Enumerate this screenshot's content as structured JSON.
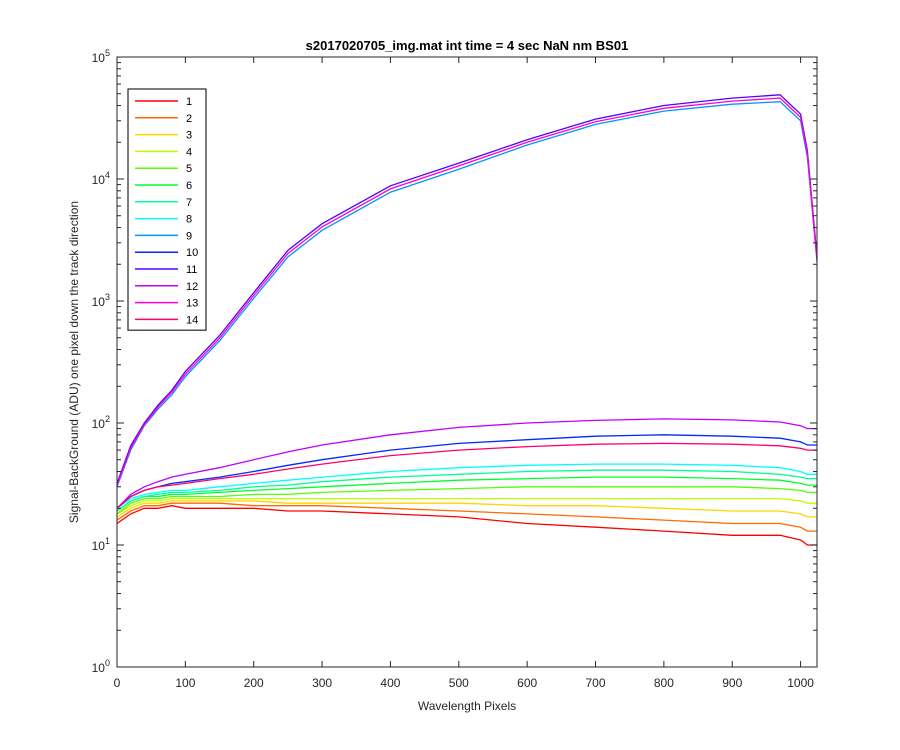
{
  "chart_data": {
    "type": "line",
    "title": "s2017020705_img.mat int time = 4 sec  NaN nm BS01",
    "xlabel": "Wavelength Pixels",
    "ylabel": "Signal-BackGround (ADU) one pixel down the track direction",
    "xlim": [
      0,
      1024
    ],
    "ylim": [
      1,
      100000
    ],
    "yscale": "log",
    "grid": false,
    "legend_position": "top-left",
    "x_ticks": [
      0,
      100,
      200,
      300,
      400,
      500,
      600,
      700,
      800,
      900,
      1000
    ],
    "x_tick_labels": [
      "0",
      "100",
      "200",
      "300",
      "400",
      "500",
      "600",
      "700",
      "800",
      "900",
      "1000"
    ],
    "y_ticks": [
      1,
      10,
      100,
      1000,
      10000,
      100000
    ],
    "y_tick_labels": [
      {
        "base": "10",
        "exp": "0"
      },
      {
        "base": "10",
        "exp": "1"
      },
      {
        "base": "10",
        "exp": "2"
      },
      {
        "base": "10",
        "exp": "3"
      },
      {
        "base": "10",
        "exp": "4"
      },
      {
        "base": "10",
        "exp": "5"
      }
    ],
    "x": [
      0,
      20,
      40,
      60,
      80,
      100,
      150,
      200,
      250,
      300,
      400,
      500,
      600,
      700,
      800,
      900,
      970,
      1000,
      1010,
      1024
    ],
    "series": [
      {
        "name": "1",
        "color": "#ff0000",
        "values": [
          15,
          18,
          20,
          20,
          21,
          20,
          20,
          20,
          19,
          19,
          18,
          17,
          15,
          14,
          13,
          12,
          12,
          11,
          10,
          10
        ]
      },
      {
        "name": "2",
        "color": "#ff6a00",
        "values": [
          16,
          19,
          21,
          21,
          22,
          22,
          22,
          21,
          21,
          21,
          20,
          19,
          18,
          17,
          16,
          15,
          15,
          14,
          13,
          13
        ]
      },
      {
        "name": "3",
        "color": "#ffd500",
        "values": [
          17,
          20,
          22,
          22,
          23,
          23,
          23,
          23,
          22,
          22,
          22,
          22,
          21,
          21,
          20,
          19,
          19,
          18,
          17,
          17
        ]
      },
      {
        "name": "4",
        "color": "#bfff00",
        "values": [
          18,
          21,
          23,
          23,
          24,
          24,
          24,
          24,
          24,
          24,
          24,
          24,
          24,
          24,
          24,
          24,
          24,
          23,
          22,
          22
        ]
      },
      {
        "name": "5",
        "color": "#55ff00",
        "values": [
          18,
          22,
          24,
          24,
          25,
          25,
          25,
          26,
          26,
          27,
          28,
          29,
          30,
          30,
          30,
          30,
          29,
          28,
          27,
          27
        ]
      },
      {
        "name": "6",
        "color": "#00ff2a",
        "values": [
          19,
          23,
          25,
          25,
          26,
          26,
          27,
          28,
          29,
          30,
          32,
          34,
          35,
          36,
          36,
          35,
          34,
          32,
          31,
          31
        ]
      },
      {
        "name": "7",
        "color": "#00ff95",
        "values": [
          19,
          23,
          25,
          26,
          27,
          27,
          28,
          30,
          31,
          33,
          36,
          38,
          40,
          41,
          41,
          40,
          38,
          36,
          35,
          35
        ]
      },
      {
        "name": "8",
        "color": "#00ffff",
        "values": [
          20,
          24,
          26,
          27,
          28,
          28,
          30,
          32,
          34,
          36,
          40,
          43,
          45,
          46,
          46,
          45,
          43,
          40,
          38,
          38
        ]
      },
      {
        "name": "9",
        "color": "#0095ff",
        "values": [
          30,
          60,
          95,
          130,
          170,
          240,
          470,
          1050,
          2300,
          3800,
          7800,
          12000,
          19000,
          28000,
          36000,
          41000,
          43000,
          30000,
          15000,
          2100
        ]
      },
      {
        "name": "10",
        "color": "#002aff",
        "values": [
          20,
          25,
          28,
          30,
          32,
          33,
          36,
          40,
          45,
          50,
          60,
          68,
          73,
          78,
          80,
          78,
          75,
          70,
          66,
          66
        ]
      },
      {
        "name": "11",
        "color": "#5500ff",
        "values": [
          32,
          65,
          100,
          140,
          185,
          265,
          520,
          1170,
          2600,
          4300,
          8800,
          13500,
          21000,
          31000,
          40000,
          46000,
          49000,
          34000,
          17000,
          2300
        ]
      },
      {
        "name": "12",
        "color": "#bf00ff",
        "values": [
          20,
          26,
          30,
          33,
          36,
          38,
          43,
          50,
          58,
          66,
          80,
          92,
          100,
          105,
          108,
          106,
          102,
          95,
          90,
          90
        ]
      },
      {
        "name": "13",
        "color": "#ff00d4",
        "values": [
          31,
          62,
          97,
          135,
          178,
          252,
          495,
          1110,
          2450,
          4050,
          8300,
          12800,
          20000,
          29500,
          38000,
          43500,
          46000,
          32000,
          16000,
          2200
        ]
      },
      {
        "name": "14",
        "color": "#ff006a",
        "values": [
          20,
          25,
          28,
          30,
          31,
          32,
          35,
          38,
          42,
          46,
          54,
          60,
          64,
          67,
          68,
          67,
          65,
          62,
          60,
          60
        ]
      }
    ]
  }
}
